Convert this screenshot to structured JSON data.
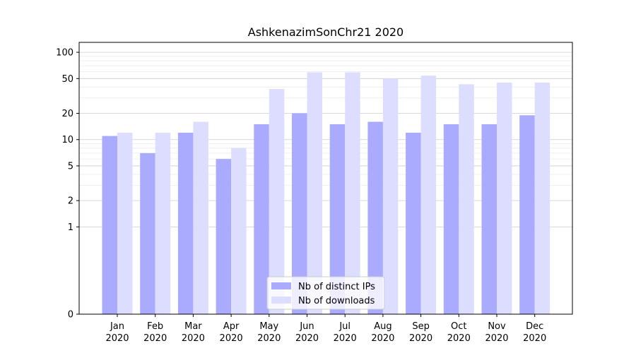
{
  "chart_data": {
    "type": "bar",
    "title": "AshkenazimSonChr21 2020",
    "xlabel": "",
    "ylabel": "",
    "y_scale": "symlog",
    "ylim": [
      0,
      130
    ],
    "y_ticks": [
      0,
      1,
      2,
      5,
      10,
      20,
      50,
      100
    ],
    "grid": true,
    "legend_position": "lower-center",
    "categories": [
      {
        "month": "Jan",
        "year": "2020"
      },
      {
        "month": "Feb",
        "year": "2020"
      },
      {
        "month": "Mar",
        "year": "2020"
      },
      {
        "month": "Apr",
        "year": "2020"
      },
      {
        "month": "May",
        "year": "2020"
      },
      {
        "month": "Jun",
        "year": "2020"
      },
      {
        "month": "Jul",
        "year": "2020"
      },
      {
        "month": "Aug",
        "year": "2020"
      },
      {
        "month": "Sep",
        "year": "2020"
      },
      {
        "month": "Oct",
        "year": "2020"
      },
      {
        "month": "Nov",
        "year": "2020"
      },
      {
        "month": "Dec",
        "year": "2020"
      }
    ],
    "series": [
      {
        "name": "Nb of distinct IPs",
        "color": "#aaaaff",
        "values": [
          11,
          7,
          12,
          6,
          15,
          20,
          15,
          16,
          12,
          15,
          15,
          19
        ]
      },
      {
        "name": "Nb of downloads",
        "color": "#ddddff",
        "values": [
          12,
          12,
          16,
          8,
          38,
          59,
          59,
          50,
          54,
          43,
          45,
          45
        ]
      }
    ]
  }
}
